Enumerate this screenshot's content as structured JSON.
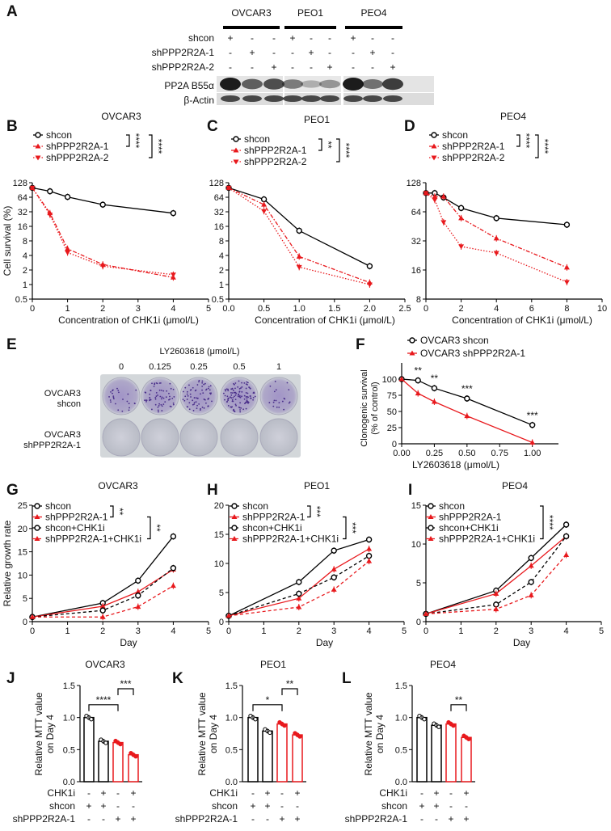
{
  "panel_letters": [
    "A",
    "B",
    "C",
    "D",
    "E",
    "F",
    "G",
    "H",
    "I",
    "J",
    "K",
    "L"
  ],
  "western_blot": {
    "cell_lines": [
      "OVCAR3",
      "PEO1",
      "PEO4"
    ],
    "rows": [
      {
        "label": "shcon",
        "values": [
          "+",
          "-",
          "-",
          "+",
          "-",
          "-",
          "+",
          "-",
          "-"
        ]
      },
      {
        "label": "shPPP2R2A-1",
        "values": [
          "-",
          "+",
          "-",
          "-",
          "+",
          "-",
          "-",
          "+",
          "-"
        ]
      },
      {
        "label": "shPPP2R2A-2",
        "values": [
          "-",
          "-",
          "+",
          "-",
          "-",
          "+",
          "-",
          "-",
          "+"
        ]
      }
    ],
    "blot_labels": [
      "PP2A B55α",
      "β-Actin"
    ]
  },
  "colony_assay": {
    "title": "LY2603618 (μmol/L)",
    "concentrations": [
      "0",
      "0.125",
      "0.25",
      "0.5",
      "1"
    ],
    "row_labels": [
      [
        "OVCAR3",
        "shcon"
      ],
      [
        "OVCAR3",
        "shPPP2R2A-1"
      ]
    ],
    "colors": {
      "stain": "#6a4fa8",
      "plate": "#d9dde0"
    }
  },
  "chart_data": [
    {
      "panel": "B",
      "type": "line",
      "title": "OVCAR3",
      "xlabel": "Concentration of CHK1i  (μmol/L)",
      "ylabel": "Cell survival (%)",
      "yscale": "log2",
      "xlim": [
        0,
        5
      ],
      "ylim": [
        0.5,
        128
      ],
      "xticks": [
        "0",
        "1",
        "2",
        "3",
        "4",
        "5"
      ],
      "yticks": [
        "0.5",
        "1",
        "2",
        "4",
        "8",
        "16",
        "32",
        "64",
        "128"
      ],
      "x": [
        0,
        0.5,
        1,
        2,
        4
      ],
      "series": [
        {
          "name": "shcon",
          "color": "#000000",
          "marker": "circle",
          "line": "solid",
          "values": [
            100,
            85,
            65,
            45,
            30
          ]
        },
        {
          "name": "shPPP2R2A-1",
          "color": "#e8191d",
          "marker": "triangle-up",
          "line": "dashdot",
          "values": [
            100,
            30,
            5.5,
            2.6,
            1.4
          ]
        },
        {
          "name": "shPPP2R2A-2",
          "color": "#e8191d",
          "marker": "triangle-down",
          "line": "dotted",
          "values": [
            100,
            28,
            4.6,
            2.4,
            1.6
          ]
        }
      ],
      "significance": [
        "****",
        "****"
      ]
    },
    {
      "panel": "C",
      "type": "line",
      "title": "PEO1",
      "xlabel": "Concentration of CHK1i  (μmol/L)",
      "ylabel": "",
      "yscale": "log2",
      "xlim": [
        0,
        2.5
      ],
      "ylim": [
        0.5,
        128
      ],
      "xticks": [
        "0.0",
        "0.5",
        "1.0",
        "1.5",
        "2.0",
        "2.5"
      ],
      "yticks": [
        "0.5",
        "1",
        "2",
        "4",
        "8",
        "16",
        "32",
        "64",
        "128"
      ],
      "x": [
        0,
        0.5,
        1,
        2
      ],
      "series": [
        {
          "name": "shcon",
          "color": "#000000",
          "marker": "circle",
          "line": "solid",
          "values": [
            100,
            58,
            13,
            2.4
          ]
        },
        {
          "name": "shPPP2R2A-1",
          "color": "#e8191d",
          "marker": "triangle-up",
          "line": "dashdot",
          "values": [
            100,
            45,
            3.8,
            1.1
          ]
        },
        {
          "name": "shPPP2R2A-2",
          "color": "#e8191d",
          "marker": "triangle-down",
          "line": "dotted",
          "values": [
            100,
            33,
            2.3,
            1.0
          ]
        }
      ],
      "significance": [
        "**",
        "****"
      ]
    },
    {
      "panel": "D",
      "type": "line",
      "title": "PEO4",
      "xlabel": "Concentration of CHK1i  (μmol/L)",
      "ylabel": "",
      "yscale": "log2",
      "xlim": [
        0,
        10
      ],
      "ylim": [
        8,
        128
      ],
      "xticks": [
        "0",
        "2",
        "4",
        "6",
        "8",
        "10"
      ],
      "yticks": [
        "8",
        "16",
        "32",
        "64",
        "128"
      ],
      "x": [
        0,
        0.5,
        1,
        2,
        4,
        8
      ],
      "series": [
        {
          "name": "shcon",
          "color": "#000000",
          "marker": "circle",
          "line": "solid",
          "values": [
            100,
            100,
            90,
            70,
            55,
            47
          ]
        },
        {
          "name": "shPPP2R2A-1",
          "color": "#e8191d",
          "marker": "triangle-up",
          "line": "dashdot",
          "values": [
            100,
            92,
            92,
            55,
            34,
            17
          ]
        },
        {
          "name": "shPPP2R2A-2",
          "color": "#e8191d",
          "marker": "triangle-down",
          "line": "dotted",
          "values": [
            100,
            85,
            50,
            28,
            24,
            12
          ]
        }
      ],
      "significance": [
        "****",
        "****"
      ]
    },
    {
      "panel": "F",
      "type": "line",
      "title": "",
      "xlabel": "LY2603618 (μmol/L)",
      "ylabel": "Clonogenic survival (% of control)",
      "yscale": "linear",
      "xlim": [
        0,
        1.2
      ],
      "ylim": [
        0,
        125
      ],
      "xticks": [
        "0.00",
        "0.25",
        "0.50",
        "0.75",
        "1.00"
      ],
      "yticks": [
        "0",
        "25",
        "50",
        "75",
        "100"
      ],
      "x": [
        0,
        0.125,
        0.25,
        0.5,
        1
      ],
      "series": [
        {
          "name": "OVCAR3 shcon",
          "color": "#000000",
          "marker": "circle",
          "line": "solid",
          "values": [
            100,
            98,
            86,
            70,
            29
          ]
        },
        {
          "name": "OVCAR3 shPPP2R2A-1",
          "color": "#e8191d",
          "marker": "triangle-up",
          "line": "solid",
          "values": [
            100,
            78,
            65,
            43,
            2
          ]
        }
      ],
      "significance": [
        "**",
        "**",
        "***",
        "***"
      ]
    },
    {
      "panel": "G",
      "type": "line",
      "title": "OVCAR3",
      "xlabel": "Day",
      "ylabel": "Relative growth rate",
      "yscale": "linear",
      "xlim": [
        0,
        5
      ],
      "ylim": [
        0,
        25
      ],
      "xticks": [
        "0",
        "1",
        "2",
        "3",
        "4",
        "5"
      ],
      "yticks": [
        "0",
        "5",
        "10",
        "15",
        "20",
        "25"
      ],
      "x": [
        0,
        2,
        3,
        4
      ],
      "series": [
        {
          "name": "shcon",
          "color": "#000000",
          "marker": "circle",
          "line": "solid",
          "values": [
            1,
            4,
            8.8,
            18.3
          ]
        },
        {
          "name": "shPPP2R2A-1",
          "color": "#e8191d",
          "marker": "triangle-up",
          "line": "solid",
          "values": [
            1,
            3.3,
            6.4,
            11.2
          ]
        },
        {
          "name": "shcon+CHK1i",
          "color": "#000000",
          "marker": "circle",
          "line": "dashed",
          "values": [
            1,
            2.4,
            5.6,
            11.5
          ]
        },
        {
          "name": "shPPP2R2A-1+CHK1i",
          "color": "#e8191d",
          "marker": "triangle-up",
          "line": "dashed",
          "values": [
            1,
            1,
            3.2,
            7.7
          ]
        }
      ],
      "significance": [
        "**",
        "**"
      ]
    },
    {
      "panel": "H",
      "type": "line",
      "title": "PEO1",
      "xlabel": "Day",
      "ylabel": "",
      "yscale": "linear",
      "xlim": [
        0,
        5
      ],
      "ylim": [
        0,
        20
      ],
      "xticks": [
        "0",
        "1",
        "2",
        "3",
        "4",
        "5"
      ],
      "yticks": [
        "0",
        "5",
        "10",
        "15",
        "20"
      ],
      "x": [
        0,
        2,
        3,
        4
      ],
      "series": [
        {
          "name": "shcon",
          "color": "#000000",
          "marker": "circle",
          "line": "solid",
          "values": [
            1,
            6.8,
            12.2,
            14.1
          ]
        },
        {
          "name": "shPPP2R2A-1",
          "color": "#e8191d",
          "marker": "triangle-up",
          "line": "solid",
          "values": [
            1,
            4,
            9,
            12.5
          ]
        },
        {
          "name": "shcon+CHK1i",
          "color": "#000000",
          "marker": "circle",
          "line": "dashed",
          "values": [
            1,
            4.8,
            7.6,
            11.3
          ]
        },
        {
          "name": "shPPP2R2A-1+CHK1i",
          "color": "#e8191d",
          "marker": "triangle-up",
          "line": "dashed",
          "values": [
            1,
            2.5,
            5.5,
            10.4
          ]
        }
      ],
      "significance": [
        "***",
        "***"
      ]
    },
    {
      "panel": "I",
      "type": "line",
      "title": "PEO4",
      "xlabel": "Day",
      "ylabel": "",
      "yscale": "linear",
      "xlim": [
        0,
        5
      ],
      "ylim": [
        0,
        15
      ],
      "xticks": [
        "0",
        "1",
        "2",
        "3",
        "4",
        "5"
      ],
      "yticks": [
        "0",
        "5",
        "10",
        "15"
      ],
      "x": [
        0,
        2,
        3,
        4
      ],
      "series": [
        {
          "name": "shcon",
          "color": "#000000",
          "marker": "circle",
          "line": "solid",
          "values": [
            1,
            4,
            8.2,
            12.5
          ]
        },
        {
          "name": "shPPP2R2A-1",
          "color": "#e8191d",
          "marker": "triangle-up",
          "line": "solid",
          "values": [
            1,
            3.6,
            7.2,
            11
          ]
        },
        {
          "name": "shcon+CHK1i",
          "color": "#000000",
          "marker": "circle",
          "line": "dashed",
          "values": [
            1,
            2.2,
            5.1,
            11
          ]
        },
        {
          "name": "shPPP2R2A-1+CHK1i",
          "color": "#e8191d",
          "marker": "triangle-up",
          "line": "dashed",
          "values": [
            1,
            1.6,
            3.4,
            8.6
          ]
        }
      ],
      "significance": [
        "****"
      ]
    },
    {
      "panel": "J",
      "type": "bar",
      "title": "OVCAR3",
      "ylabel": "Relative MTT value on Day 4",
      "ylim": [
        0,
        1.5
      ],
      "yticks": [
        "0.0",
        "0.5",
        "1.0",
        "1.5"
      ],
      "values": [
        1.0,
        0.63,
        0.61,
        0.42
      ],
      "colors": [
        "#000000",
        "#000000",
        "#e8191d",
        "#e8191d"
      ],
      "condition_rows": [
        {
          "label": "CHK1i",
          "values": [
            "-",
            "+",
            "-",
            "+"
          ]
        },
        {
          "label": "shcon",
          "values": [
            "+",
            "+",
            "-",
            "-"
          ]
        },
        {
          "label": "shPPP2R2A-1",
          "values": [
            "-",
            "-",
            "+",
            "+"
          ]
        }
      ],
      "significance": [
        {
          "from": 0,
          "to": 2,
          "label": "****"
        },
        {
          "from": 2,
          "to": 3,
          "label": "***"
        }
      ]
    },
    {
      "panel": "K",
      "type": "bar",
      "title": "PEO1",
      "ylabel": "Relative MTT value on Day 4",
      "ylim": [
        0,
        1.5
      ],
      "yticks": [
        "0.0",
        "0.5",
        "1.0",
        "1.5"
      ],
      "values": [
        1.0,
        0.79,
        0.9,
        0.73
      ],
      "colors": [
        "#000000",
        "#000000",
        "#e8191d",
        "#e8191d"
      ],
      "condition_rows": [
        {
          "label": "CHK1i",
          "values": [
            "-",
            "+",
            "-",
            "+"
          ]
        },
        {
          "label": "shcon",
          "values": [
            "+",
            "+",
            "-",
            "-"
          ]
        },
        {
          "label": "shPPP2R2A-1",
          "values": [
            "-",
            "-",
            "+",
            "+"
          ]
        }
      ],
      "significance": [
        {
          "from": 0,
          "to": 2,
          "label": "*"
        },
        {
          "from": 2,
          "to": 3,
          "label": "**"
        }
      ]
    },
    {
      "panel": "L",
      "type": "bar",
      "title": "PEO4",
      "ylabel": "Relative MTT value on Day 4",
      "ylim": [
        0,
        1.5
      ],
      "yticks": [
        "0.0",
        "0.5",
        "1.0",
        "1.5"
      ],
      "values": [
        1.0,
        0.88,
        0.9,
        0.69
      ],
      "colors": [
        "#000000",
        "#000000",
        "#e8191d",
        "#e8191d"
      ],
      "condition_rows": [
        {
          "label": "CHK1i",
          "values": [
            "-",
            "+",
            "-",
            "+"
          ]
        },
        {
          "label": "shcon",
          "values": [
            "+",
            "+",
            "-",
            "-"
          ]
        },
        {
          "label": "shPPP2R2A-1",
          "values": [
            "-",
            "-",
            "+",
            "+"
          ]
        }
      ],
      "significance": [
        {
          "from": 2,
          "to": 3,
          "label": "**"
        }
      ]
    }
  ]
}
